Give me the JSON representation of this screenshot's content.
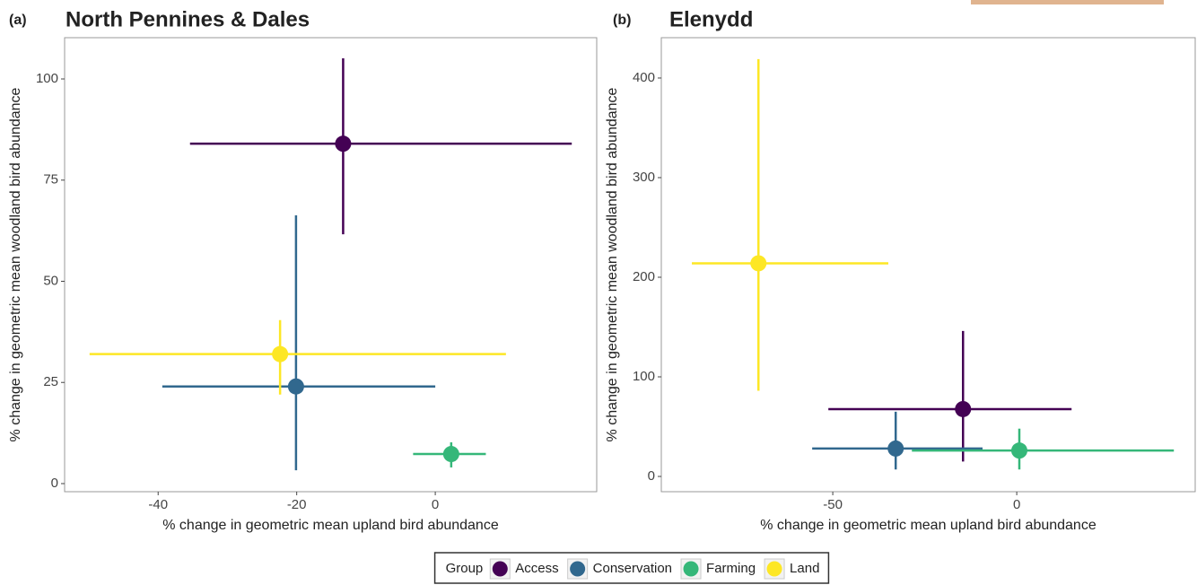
{
  "chart_data": [
    {
      "type": "scatter",
      "panel": "(a)",
      "title": "North Pennines & Dales",
      "x_label": "% change in geometric mean upland bird abundance",
      "y_label": "% change in geometric mean woodland bird abundance",
      "xlim": [
        -53.5,
        23.3
      ],
      "ylim": [
        -2,
        110.2
      ],
      "xticks": [
        -40,
        -20,
        0
      ],
      "yticks": [
        0,
        25,
        50,
        75,
        100
      ],
      "series": [
        {
          "name": "Access",
          "color": "#440154",
          "x": [
            -13.3
          ],
          "values": [
            84
          ],
          "x_low": [
            -35.4
          ],
          "x_high": [
            19.7
          ],
          "y_low": [
            61.6
          ],
          "y_high": [
            105.1
          ]
        },
        {
          "name": "Conservation",
          "color": "#31688e",
          "x": [
            -20.1
          ],
          "values": [
            24
          ],
          "x_low": [
            -39.4
          ],
          "x_high": [
            0
          ],
          "y_low": [
            3.3
          ],
          "y_high": [
            66.3
          ]
        },
        {
          "name": "Farming",
          "color": "#35b779",
          "x": [
            2.3
          ],
          "values": [
            7.3
          ],
          "x_low": [
            -3.2
          ],
          "x_high": [
            7.3
          ],
          "y_low": [
            4
          ],
          "y_high": [
            10.2
          ]
        },
        {
          "name": "Land",
          "color": "#fde725",
          "x": [
            -22.4
          ],
          "values": [
            32
          ],
          "x_low": [
            -49.9
          ],
          "x_high": [
            10.2
          ],
          "y_low": [
            22
          ],
          "y_high": [
            40.4
          ]
        }
      ]
    },
    {
      "type": "scatter",
      "panel": "(b)",
      "title": "Elenydd",
      "x_label": "% change in geometric mean upland bird abundance",
      "y_label": "% change in geometric mean woodland bird abundance",
      "xlim": [
        -96.6,
        48.5
      ],
      "ylim": [
        -15.3,
        440.5
      ],
      "xticks": [
        -50,
        0
      ],
      "yticks": [
        0,
        100,
        200,
        300,
        400
      ],
      "series": [
        {
          "name": "Access",
          "color": "#440154",
          "x": [
            -14.6
          ],
          "values": [
            67.6
          ],
          "x_low": [
            -51.2
          ],
          "x_high": [
            14.9
          ],
          "y_low": [
            15
          ],
          "y_high": [
            146
          ]
        },
        {
          "name": "Conservation",
          "color": "#31688e",
          "x": [
            -32.9
          ],
          "values": [
            28
          ],
          "x_low": [
            -55.6
          ],
          "x_high": [
            -9.3
          ],
          "y_low": [
            7
          ],
          "y_high": [
            65
          ]
        },
        {
          "name": "Farming",
          "color": "#35b779",
          "x": [
            0.7
          ],
          "values": [
            26
          ],
          "x_low": [
            -28.5
          ],
          "x_high": [
            42.7
          ],
          "y_low": [
            7
          ],
          "y_high": [
            48
          ]
        },
        {
          "name": "Land",
          "color": "#fde725",
          "x": [
            -70.2
          ],
          "values": [
            214
          ],
          "x_low": [
            -88.3
          ],
          "x_high": [
            -34.9
          ],
          "y_low": [
            86
          ],
          "y_high": [
            419
          ]
        }
      ]
    }
  ],
  "legend": {
    "title": "Group",
    "position": "bottom"
  }
}
